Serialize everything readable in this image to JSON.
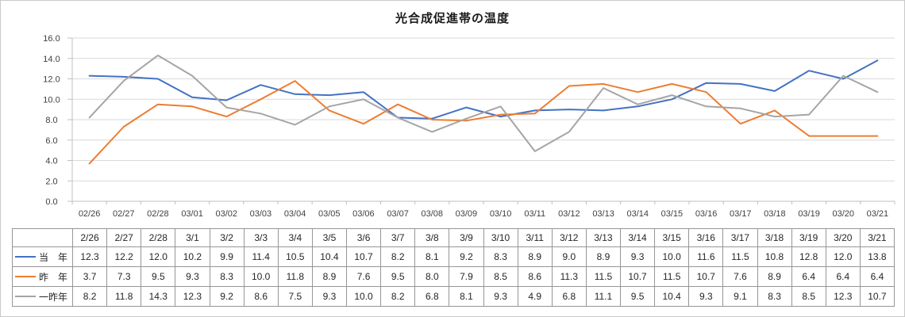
{
  "title": "光合成促進帯の温度",
  "chart_data": {
    "type": "line",
    "title": "光合成促進帯の温度",
    "x_labels": [
      "02/26",
      "02/27",
      "02/28",
      "03/01",
      "03/02",
      "03/03",
      "03/04",
      "03/05",
      "03/06",
      "03/07",
      "03/08",
      "03/09",
      "03/10",
      "03/11",
      "03/12",
      "03/13",
      "03/14",
      "03/15",
      "03/16",
      "03/17",
      "03/18",
      "03/19",
      "03/20",
      "03/21"
    ],
    "ylim": [
      0,
      16
    ],
    "ytick_step": 2,
    "grid": "horizontal",
    "legend_position": "data-table-left",
    "series": [
      {
        "id": "this-year",
        "name": "当　年",
        "color": "#4472C4",
        "values": [
          12.3,
          12.2,
          12.0,
          10.2,
          9.9,
          11.4,
          10.5,
          10.4,
          10.7,
          8.2,
          8.1,
          9.2,
          8.3,
          8.9,
          9.0,
          8.9,
          9.3,
          10.0,
          11.6,
          11.5,
          10.8,
          12.8,
          12.0,
          13.8
        ]
      },
      {
        "id": "last-year",
        "name": "昨　年",
        "color": "#ED7D31",
        "values": [
          3.7,
          7.3,
          9.5,
          9.3,
          8.3,
          10.0,
          11.8,
          8.9,
          7.6,
          9.5,
          8.0,
          7.9,
          8.5,
          8.6,
          11.3,
          11.5,
          10.7,
          11.5,
          10.7,
          7.6,
          8.9,
          6.4,
          6.4,
          6.4
        ]
      },
      {
        "id": "two-years-ago",
        "name": "一昨年",
        "color": "#A5A5A5",
        "values": [
          8.2,
          11.8,
          14.3,
          12.3,
          9.2,
          8.6,
          7.5,
          9.3,
          10.0,
          8.2,
          6.8,
          8.1,
          9.3,
          4.9,
          6.8,
          11.1,
          9.5,
          10.4,
          9.3,
          9.1,
          8.3,
          8.5,
          12.3,
          10.7
        ]
      }
    ]
  },
  "table": {
    "columns": [
      "2/26",
      "2/27",
      "2/28",
      "3/1",
      "3/2",
      "3/3",
      "3/4",
      "3/5",
      "3/6",
      "3/7",
      "3/8",
      "3/9",
      "3/10",
      "3/11",
      "3/12",
      "3/13",
      "3/14",
      "3/15",
      "3/16",
      "3/17",
      "3/18",
      "3/19",
      "3/20",
      "3/21"
    ]
  },
  "colors": {
    "axis": "#BFBFBF",
    "gridline": "#D9D9D9",
    "table_border": "#969696",
    "tick_text": "#404040"
  }
}
